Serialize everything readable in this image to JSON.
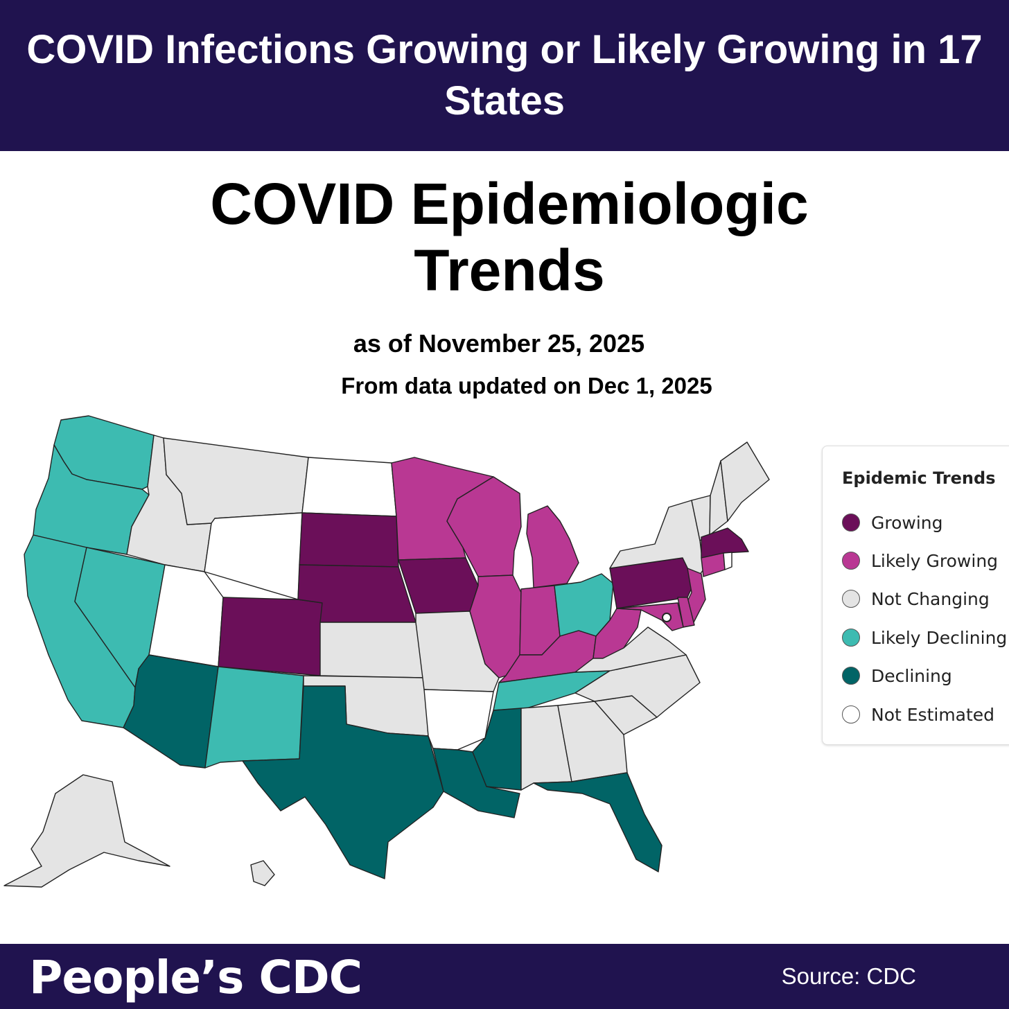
{
  "header": {
    "banner_title": "COVID Infections Growing or Likely Growing in 17 States"
  },
  "map": {
    "title": "COVID Epidemiologic Trends",
    "subtitle": "as of November 25, 2025",
    "updated": "From data updated on Dec 1, 2025",
    "categories": [
      {
        "key": "growing",
        "label": "Growing",
        "color": "#6b0f59"
      },
      {
        "key": "likely_growing",
        "label": "Likely Growing",
        "color": "#b93893"
      },
      {
        "key": "not_changing",
        "label": "Not Changing",
        "color": "#e4e4e4"
      },
      {
        "key": "likely_declining",
        "label": "Likely Declining",
        "color": "#3dbbb1"
      },
      {
        "key": "declining",
        "label": "Declining",
        "color": "#016466"
      },
      {
        "key": "not_estimated",
        "label": "Not Estimated",
        "color": "#ffffff"
      }
    ],
    "states": {
      "WA": "likely_declining",
      "OR": "likely_declining",
      "CA": "likely_declining",
      "NV": "likely_declining",
      "ID": "not_changing",
      "MT": "not_changing",
      "WY": "not_estimated",
      "UT": "not_estimated",
      "AZ": "declining",
      "CO": "growing",
      "NM": "likely_declining",
      "ND": "not_estimated",
      "SD": "growing",
      "NE": "growing",
      "KS": "not_changing",
      "OK": "not_changing",
      "TX": "declining",
      "MN": "likely_growing",
      "IA": "growing",
      "MO": "not_changing",
      "AR": "not_estimated",
      "LA": "declining",
      "WI": "likely_growing",
      "IL": "likely_growing",
      "MI": "likely_growing",
      "IN": "likely_growing",
      "OH": "likely_declining",
      "KY": "likely_growing",
      "TN": "likely_declining",
      "MS": "declining",
      "AL": "not_changing",
      "GA": "not_changing",
      "FL": "declining",
      "SC": "not_changing",
      "NC": "not_changing",
      "VA": "not_changing",
      "WV": "likely_growing",
      "PA": "growing",
      "NY": "not_changing",
      "VT": "not_changing",
      "NH": "not_changing",
      "ME": "not_changing",
      "MA": "growing",
      "CT": "likely_growing",
      "RI": "not_estimated",
      "NJ": "likely_growing",
      "DE": "likely_growing",
      "MD": "likely_growing",
      "DC": "not_estimated",
      "AK": "not_changing",
      "HI": "not_changing"
    }
  },
  "legend": {
    "title": "Epidemic Trends"
  },
  "footer": {
    "brand": "People’s CDC",
    "source": "Source: CDC"
  }
}
